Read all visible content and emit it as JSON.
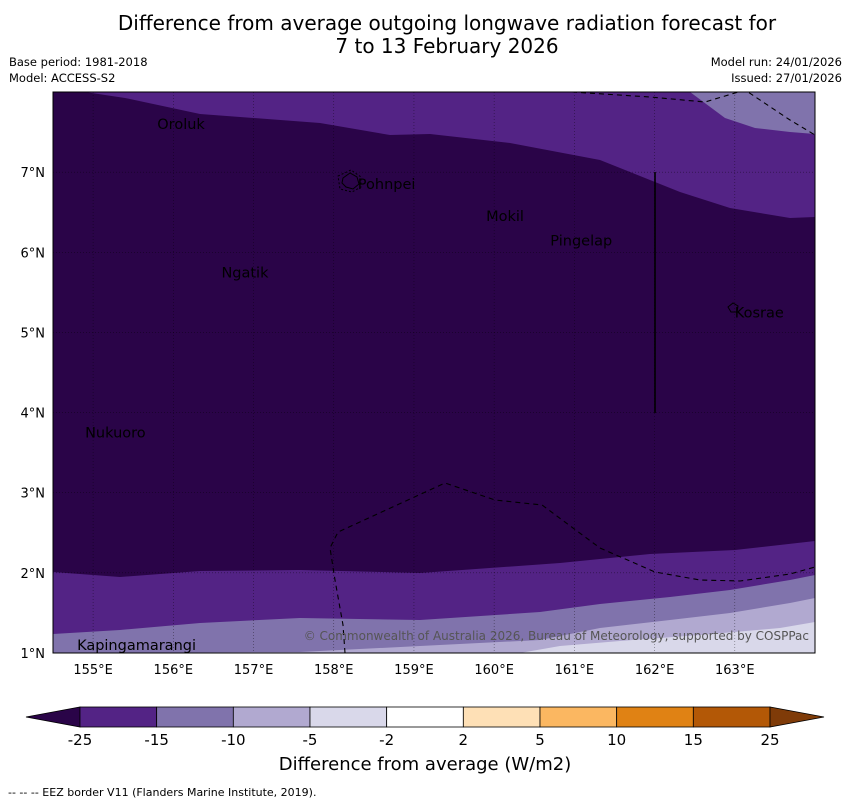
{
  "title": {
    "line1": "Difference from average outgoing longwave radiation forecast for",
    "line2": "7 to 13 February 2026"
  },
  "meta": {
    "base_period": "Base period: 1981-2018",
    "model": "Model: ACCESS-S2",
    "model_run": "Model run: 24/01/2026",
    "issued": "Issued: 27/01/2026"
  },
  "map": {
    "lon_range": [
      154.5,
      164.0
    ],
    "lat_range": [
      1.0,
      8.0
    ],
    "lon_ticks": [
      "155°E",
      "156°E",
      "157°E",
      "158°E",
      "159°E",
      "160°E",
      "161°E",
      "162°E",
      "163°E"
    ],
    "lat_ticks": [
      "1°N",
      "2°N",
      "3°N",
      "4°N",
      "5°N",
      "6°N",
      "7°N"
    ],
    "places": [
      {
        "name": "Oroluk",
        "lon": 155.8,
        "lat": 7.6
      },
      {
        "name": "Pohnpei",
        "lon": 158.3,
        "lat": 6.85
      },
      {
        "name": "Mokil",
        "lon": 159.9,
        "lat": 6.45
      },
      {
        "name": "Pingelap",
        "lon": 160.7,
        "lat": 6.15
      },
      {
        "name": "Ngatik",
        "lon": 156.6,
        "lat": 5.75
      },
      {
        "name": "Kosrae",
        "lon": 163.0,
        "lat": 5.25
      },
      {
        "name": "Nukuoro",
        "lon": 154.9,
        "lat": 3.75
      },
      {
        "name": "Kapingamarangi",
        "lon": 154.8,
        "lat": 1.1
      }
    ],
    "copyright": "© Commonwealth of Australia 2026, Bureau of Meteorology, supported by COSPPac"
  },
  "colorbar": {
    "labels": [
      "-25",
      "-15",
      "-10",
      "-5",
      "-2",
      "2",
      "5",
      "10",
      "15",
      "25"
    ],
    "colors": [
      "#2a0448",
      "#532385",
      "#8073ac",
      "#b1a9d0",
      "#d9d8ea",
      "#ffffff",
      "#fee0b6",
      "#fbb761",
      "#e08214",
      "#b35806",
      "#7f3b08"
    ],
    "title": "Difference from average (W/m2)"
  },
  "footer": "--  --  -- EEZ border V11 (Flanders Marine Institute, 2019)."
}
